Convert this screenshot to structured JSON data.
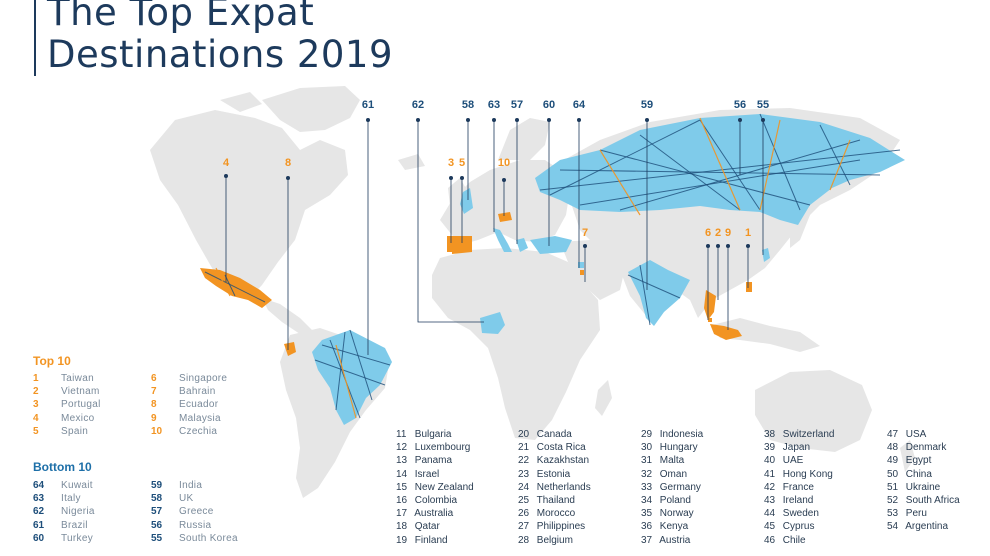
{
  "title": {
    "line1": "The Top Expat",
    "line2": "Destinations 2019"
  },
  "colors": {
    "top10": "#f29422",
    "bottom10": "#7fcbea",
    "line": "#1d4e7a",
    "land": "#e6e6e6",
    "title": "#1d3a5c"
  },
  "chart_data": {
    "type": "map",
    "title": "The Top Expat Destinations 2019",
    "map_labels": [
      {
        "rank": "61",
        "country": "Brazil",
        "group": "bottom"
      },
      {
        "rank": "62",
        "country": "Nigeria",
        "group": "bottom"
      },
      {
        "rank": "58",
        "country": "UK",
        "group": "bottom"
      },
      {
        "rank": "63",
        "country": "Italy",
        "group": "bottom"
      },
      {
        "rank": "57",
        "country": "Greece",
        "group": "bottom"
      },
      {
        "rank": "60",
        "country": "Turkey",
        "group": "bottom"
      },
      {
        "rank": "64",
        "country": "Kuwait",
        "group": "bottom"
      },
      {
        "rank": "59",
        "country": "India",
        "group": "bottom"
      },
      {
        "rank": "56",
        "country": "Russia",
        "group": "bottom"
      },
      {
        "rank": "55",
        "country": "South Korea",
        "group": "bottom"
      },
      {
        "rank": "4",
        "country": "Mexico",
        "group": "top"
      },
      {
        "rank": "8",
        "country": "Ecuador",
        "group": "top"
      },
      {
        "rank": "3",
        "country": "Portugal",
        "group": "top"
      },
      {
        "rank": "5",
        "country": "Spain",
        "group": "top"
      },
      {
        "rank": "10",
        "country": "Czechia",
        "group": "top"
      },
      {
        "rank": "7",
        "country": "Bahrain",
        "group": "top"
      },
      {
        "rank": "6",
        "country": "Singapore",
        "group": "top"
      },
      {
        "rank": "2",
        "country": "Vietnam",
        "group": "top"
      },
      {
        "rank": "9",
        "country": "Malaysia",
        "group": "top"
      },
      {
        "rank": "1",
        "country": "Taiwan",
        "group": "top"
      }
    ],
    "top10_heading": "Top 10",
    "top10_col1": [
      {
        "rank": "1",
        "country": "Taiwan"
      },
      {
        "rank": "2",
        "country": "Vietnam"
      },
      {
        "rank": "3",
        "country": "Portugal"
      },
      {
        "rank": "4",
        "country": "Mexico"
      },
      {
        "rank": "5",
        "country": "Spain"
      }
    ],
    "top10_col2": [
      {
        "rank": "6",
        "country": "Singapore"
      },
      {
        "rank": "7",
        "country": "Bahrain"
      },
      {
        "rank": "8",
        "country": "Ecuador"
      },
      {
        "rank": "9",
        "country": "Malaysia"
      },
      {
        "rank": "10",
        "country": "Czechia"
      }
    ],
    "bottom10_heading": "Bottom 10",
    "bottom10_col1": [
      {
        "rank": "64",
        "country": "Kuwait"
      },
      {
        "rank": "63",
        "country": "Italy"
      },
      {
        "rank": "62",
        "country": "Nigeria"
      },
      {
        "rank": "61",
        "country": "Brazil"
      },
      {
        "rank": "60",
        "country": "Turkey"
      }
    ],
    "bottom10_col2": [
      {
        "rank": "59",
        "country": "India"
      },
      {
        "rank": "58",
        "country": "UK"
      },
      {
        "rank": "57",
        "country": "Greece"
      },
      {
        "rank": "56",
        "country": "Russia"
      },
      {
        "rank": "55",
        "country": "South Korea"
      }
    ],
    "middle_columns": [
      [
        {
          "rank": "11",
          "country": "Bulgaria"
        },
        {
          "rank": "12",
          "country": "Luxembourg"
        },
        {
          "rank": "13",
          "country": "Panama"
        },
        {
          "rank": "14",
          "country": "Israel"
        },
        {
          "rank": "15",
          "country": "New Zealand"
        },
        {
          "rank": "16",
          "country": "Colombia"
        },
        {
          "rank": "17",
          "country": "Australia"
        },
        {
          "rank": "18",
          "country": "Qatar"
        },
        {
          "rank": "19",
          "country": "Finland"
        }
      ],
      [
        {
          "rank": "20",
          "country": "Canada"
        },
        {
          "rank": "21",
          "country": "Costa Rica"
        },
        {
          "rank": "22",
          "country": "Kazakhstan"
        },
        {
          "rank": "23",
          "country": "Estonia"
        },
        {
          "rank": "24",
          "country": "Netherlands"
        },
        {
          "rank": "25",
          "country": "Thailand"
        },
        {
          "rank": "26",
          "country": "Morocco"
        },
        {
          "rank": "27",
          "country": "Philippines"
        },
        {
          "rank": "28",
          "country": "Belgium"
        }
      ],
      [
        {
          "rank": "29",
          "country": "Indonesia"
        },
        {
          "rank": "30",
          "country": "Hungary"
        },
        {
          "rank": "31",
          "country": "Malta"
        },
        {
          "rank": "32",
          "country": "Oman"
        },
        {
          "rank": "33",
          "country": "Germany"
        },
        {
          "rank": "34",
          "country": "Poland"
        },
        {
          "rank": "35",
          "country": "Norway"
        },
        {
          "rank": "36",
          "country": "Kenya"
        },
        {
          "rank": "37",
          "country": "Austria"
        }
      ],
      [
        {
          "rank": "38",
          "country": "Switzerland"
        },
        {
          "rank": "39",
          "country": "Japan"
        },
        {
          "rank": "40",
          "country": "UAE"
        },
        {
          "rank": "41",
          "country": "Hong Kong"
        },
        {
          "rank": "42",
          "country": "France"
        },
        {
          "rank": "43",
          "country": "Ireland"
        },
        {
          "rank": "44",
          "country": "Sweden"
        },
        {
          "rank": "45",
          "country": "Cyprus"
        },
        {
          "rank": "46",
          "country": "Chile"
        }
      ],
      [
        {
          "rank": "47",
          "country": "USA"
        },
        {
          "rank": "48",
          "country": "Denmark"
        },
        {
          "rank": "49",
          "country": "Egypt"
        },
        {
          "rank": "50",
          "country": "China"
        },
        {
          "rank": "51",
          "country": "Ukraine"
        },
        {
          "rank": "52",
          "country": "South Africa"
        },
        {
          "rank": "53",
          "country": "Peru"
        },
        {
          "rank": "54",
          "country": "Argentina"
        }
      ]
    ]
  }
}
